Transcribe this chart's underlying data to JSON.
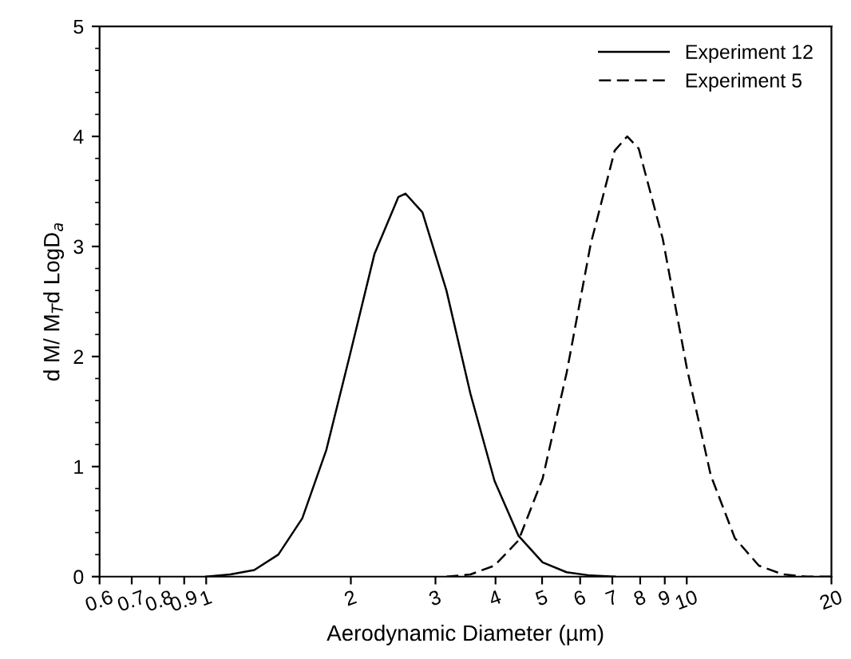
{
  "chart_data": {
    "type": "line",
    "xlabel": "Aerodynamic Diameter (µm)",
    "ylabel": "d M/ M$_{T}$d LogD$_{a}$",
    "log": "x",
    "xlim": [
      0.6,
      20
    ],
    "xticks": [
      0.6,
      0.7,
      0.8,
      0.9,
      1,
      2,
      3,
      4,
      5,
      6,
      7,
      8,
      9,
      10,
      20
    ],
    "ylim": [
      0,
      5
    ],
    "yticks": [
      0,
      1,
      2,
      3,
      4,
      5
    ],
    "grid": false,
    "legend": "top right",
    "marker": "none",
    "series": [
      {
        "name": "Experiment 12",
        "color": "#000000",
        "line_style": "solid",
        "x": [
          1,
          1.122,
          1.259,
          1.413,
          1.585,
          1.778,
          1.995,
          2.239,
          2.512,
          2.6,
          2.818,
          3.162,
          3.548,
          3.981,
          4.467,
          5.012,
          5.623,
          6.31,
          7.079
        ],
        "values": [
          0.0,
          0.02,
          0.06,
          0.2,
          0.53,
          1.15,
          2.03,
          2.93,
          3.45,
          3.48,
          3.31,
          2.6,
          1.66,
          0.87,
          0.37,
          0.13,
          0.04,
          0.01,
          0.0
        ]
      },
      {
        "name": "Experiment 5",
        "color": "#000000",
        "line_style": "dashed",
        "x": [
          3.162,
          3.548,
          3.981,
          4.467,
          5.012,
          5.623,
          6.31,
          7.079,
          7.516,
          7.943,
          8.913,
          10,
          11.22,
          12.59,
          14.13,
          15.85,
          17.78,
          19.95
        ],
        "values": [
          0.0,
          0.02,
          0.1,
          0.33,
          0.89,
          1.85,
          3.02,
          3.87,
          4.0,
          3.89,
          3.07,
          1.9,
          0.92,
          0.35,
          0.1,
          0.02,
          0.0,
          0.0
        ]
      }
    ]
  }
}
